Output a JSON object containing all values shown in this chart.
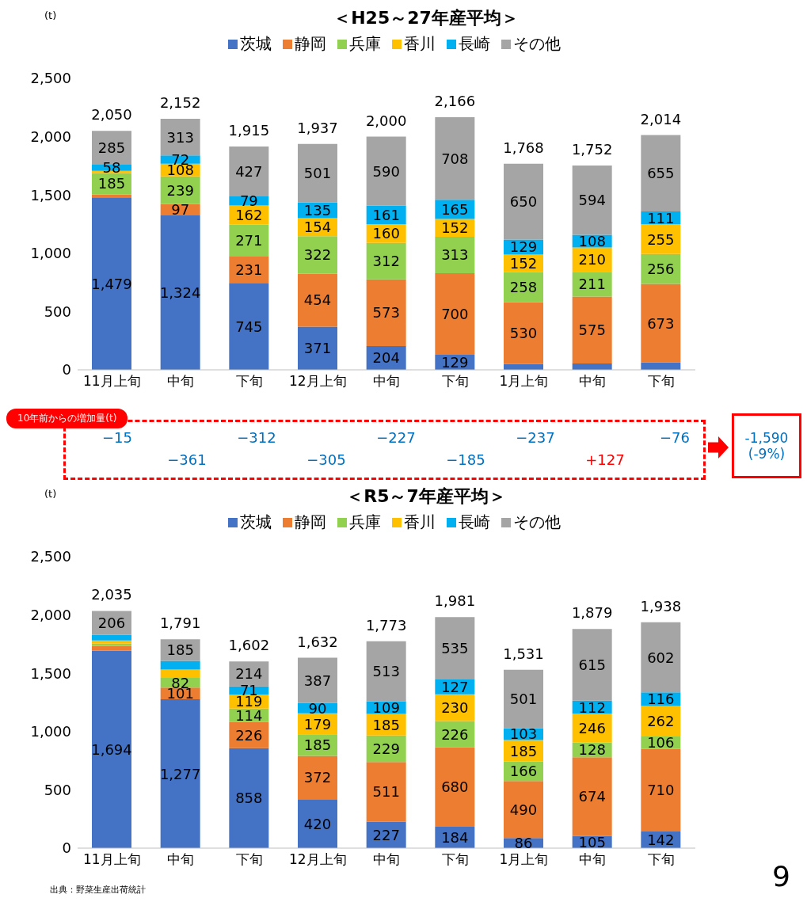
{
  "chart_data": [
    {
      "type": "bar",
      "stacked": true,
      "title": "＜H25～27年産平均＞",
      "ylabel": "(t)",
      "legend": "top",
      "categories": [
        "11月上旬",
        "中旬",
        "下旬",
        "12月上旬",
        "中旬",
        "下旬",
        "1月上旬",
        "中旬",
        "下旬"
      ],
      "ylim": [
        0,
        2500
      ],
      "yticks": [
        0,
        {
          "value": 500,
          "label": "500"
        },
        {
          "value": 1000,
          "label": "1,000"
        },
        {
          "value": 1500,
          "label": "1,500"
        },
        {
          "value": 2000,
          "label": "2,000"
        },
        {
          "value": 2500,
          "label": "2,500"
        }
      ],
      "series": [
        {
          "name": "茨城",
          "color": "#4472c4",
          "values": [
            1479,
            1324,
            745,
            371,
            204,
            129,
            49,
            54,
            64
          ],
          "value_labels": [
            "1,479",
            "1,324",
            "745",
            "371",
            "204",
            "129",
            null,
            null,
            null
          ]
        },
        {
          "name": "静岡",
          "color": "#ed7d31",
          "values": [
            25,
            97,
            231,
            454,
            573,
            700,
            530,
            575,
            673
          ],
          "value_labels": [
            null,
            "97",
            "231",
            "454",
            "573",
            "700",
            "530",
            "575",
            "673"
          ]
        },
        {
          "name": "兵庫",
          "color": "#92d050",
          "values": [
            185,
            239,
            271,
            322,
            312,
            313,
            258,
            211,
            256
          ],
          "value_labels": [
            "185",
            "239",
            "271",
            "322",
            "312",
            "313",
            "258",
            "211",
            "256"
          ]
        },
        {
          "name": "香川",
          "color": "#ffc000",
          "values": [
            18,
            108,
            162,
            154,
            160,
            152,
            152,
            210,
            255
          ],
          "value_labels": [
            null,
            "108",
            "162",
            "154",
            "160",
            "152",
            "152",
            "210",
            "255"
          ]
        },
        {
          "name": "長崎",
          "color": "#00b0f0",
          "values": [
            58,
            72,
            79,
            135,
            161,
            165,
            129,
            108,
            111
          ],
          "value_labels": [
            "58",
            "72",
            "79",
            "135",
            "161",
            "165",
            "129",
            "108",
            "111"
          ]
        },
        {
          "name": "その他",
          "color": "#a5a5a5",
          "values": [
            285,
            313,
            427,
            501,
            590,
            708,
            650,
            594,
            655
          ],
          "value_labels": [
            "285",
            "313",
            "427",
            "501",
            "590",
            "708",
            "650",
            "594",
            "655"
          ]
        }
      ],
      "totals": [
        "2,050",
        "2,152",
        "1,915",
        "1,937",
        "2,000",
        "2,166",
        "1,768",
        "1,752",
        "2,014"
      ]
    },
    {
      "type": "other",
      "title": "10年前からの増加量(t)",
      "annotations": [
        "−15",
        "−361",
        "−312",
        "−305",
        "−227",
        "−185",
        "−237",
        "+127",
        "−76",
        "-1,590",
        "(-9%)"
      ]
    },
    {
      "type": "bar",
      "stacked": true,
      "title": "＜R5～7年産平均＞",
      "ylabel": "(t)",
      "legend": "top",
      "categories": [
        "11月上旬",
        "中旬",
        "下旬",
        "12月上旬",
        "中旬",
        "下旬",
        "1月上旬",
        "中旬",
        "下旬"
      ],
      "ylim": [
        0,
        2500
      ],
      "yticks": [
        0,
        {
          "value": 500,
          "label": "500"
        },
        {
          "value": 1000,
          "label": "1,000"
        },
        {
          "value": 1500,
          "label": "1,500"
        },
        {
          "value": 2000,
          "label": "2,000"
        },
        {
          "value": 2500,
          "label": "2,500"
        }
      ],
      "series": [
        {
          "name": "茨城",
          "color": "#4472c4",
          "values": [
            1694,
            1277,
            858,
            420,
            227,
            184,
            86,
            105,
            142
          ],
          "value_labels": [
            "1,694",
            "1,277",
            "858",
            "420",
            "227",
            "184",
            "86",
            "105",
            "142"
          ]
        },
        {
          "name": "静岡",
          "color": "#ed7d31",
          "values": [
            40,
            101,
            226,
            372,
            511,
            680,
            490,
            674,
            710
          ],
          "value_labels": [
            null,
            "101",
            "226",
            "372",
            "511",
            "680",
            "490",
            "674",
            "710"
          ]
        },
        {
          "name": "兵庫",
          "color": "#92d050",
          "values": [
            20,
            82,
            114,
            185,
            229,
            226,
            166,
            128,
            106
          ],
          "value_labels": [
            null,
            "82",
            "114",
            "185",
            "229",
            "226",
            "166",
            "128",
            "106"
          ]
        },
        {
          "name": "香川",
          "color": "#ffc000",
          "values": [
            28,
            72,
            119,
            179,
            185,
            230,
            185,
            246,
            262
          ],
          "value_labels": [
            null,
            null,
            "119",
            "179",
            "185",
            "230",
            "185",
            "246",
            "262"
          ]
        },
        {
          "name": "長崎",
          "color": "#00b0f0",
          "values": [
            47,
            74,
            71,
            90,
            109,
            127,
            103,
            112,
            116
          ],
          "value_labels": [
            null,
            null,
            "71",
            "90",
            "109",
            "127",
            "103",
            "112",
            "116"
          ]
        },
        {
          "name": "その他",
          "color": "#a5a5a5",
          "values": [
            206,
            185,
            214,
            387,
            513,
            535,
            501,
            615,
            602
          ],
          "value_labels": [
            "206",
            "185",
            "214",
            "387",
            "513",
            "535",
            "501",
            "615",
            "602"
          ]
        }
      ],
      "totals": [
        "2,035",
        "1,791",
        "1,602",
        "1,632",
        "1,773",
        "1,981",
        "1,531",
        "1,879",
        "1,938"
      ],
      "annotations": [
        "出典：野菜生産出荷統計",
        "9"
      ]
    }
  ]
}
